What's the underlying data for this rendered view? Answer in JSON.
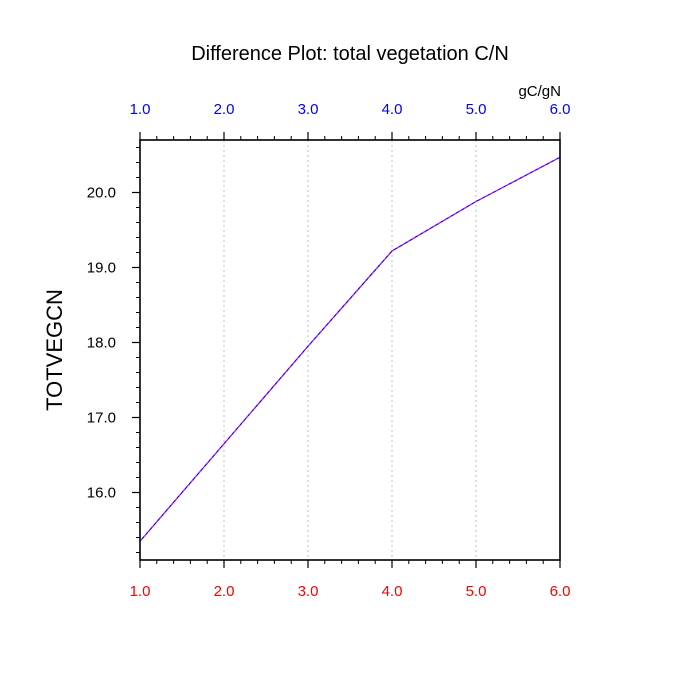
{
  "chart_data": {
    "type": "line",
    "title": "Difference Plot: total vegetation C/N",
    "units_label": "gC/gN",
    "ylabel": "TOTVEGCN",
    "x": [
      1,
      2,
      3,
      4,
      5,
      6
    ],
    "series": [
      {
        "values": [
          15.35,
          16.65,
          17.95,
          19.22,
          19.88,
          20.47
        ],
        "color": "#0000ff",
        "dash_color": "#ff00ff"
      }
    ],
    "xlim": [
      1,
      6
    ],
    "ylim": [
      15.1,
      20.7
    ],
    "x_ticks": [
      1,
      2,
      3,
      4,
      5,
      6
    ],
    "x_tick_labels": [
      "1.0",
      "2.0",
      "3.0",
      "4.0",
      "5.0",
      "6.0"
    ],
    "y_ticks": [
      16,
      17,
      18,
      19,
      20
    ],
    "y_tick_labels": [
      "16.0",
      "17.0",
      "18.0",
      "19.0",
      "20.0"
    ],
    "bottom_tick_color": "#ff0000",
    "top_tick_color": "#0000ff",
    "grid": "vertical dotted"
  }
}
